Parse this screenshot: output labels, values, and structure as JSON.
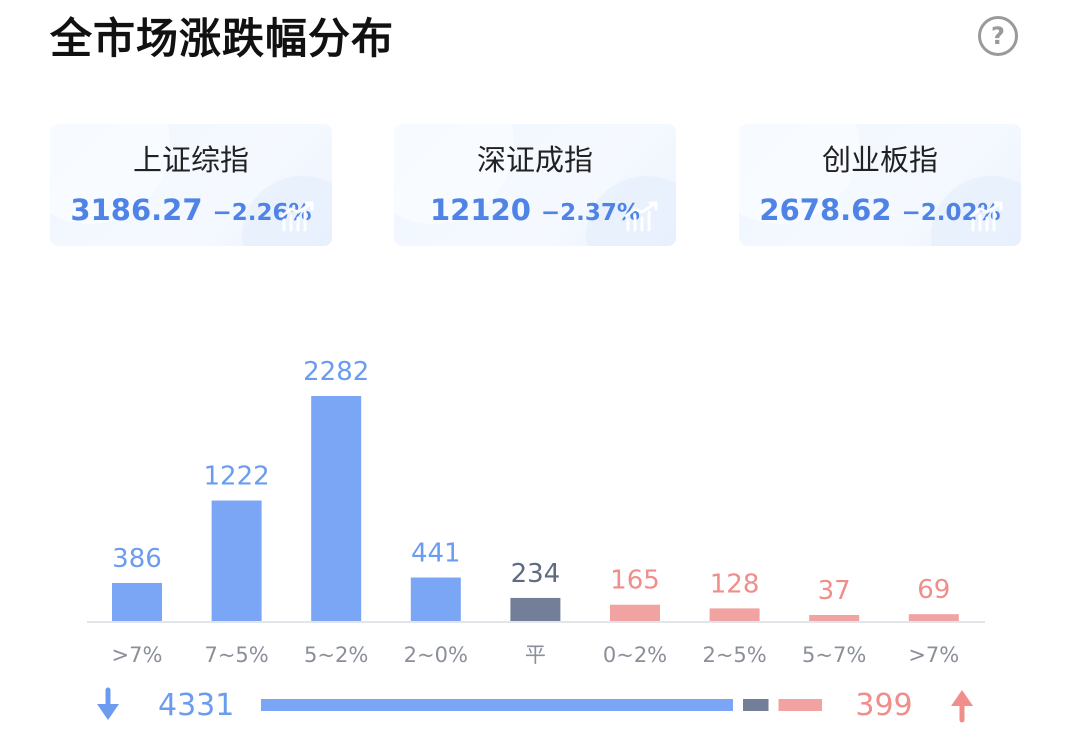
{
  "title": "全市场涨跌幅分布",
  "help_icon": "question-circle-icon",
  "indices": [
    {
      "name": "上证综指",
      "value": "3186.27",
      "change": "−2.26%"
    },
    {
      "name": "深证成指",
      "value": "12120",
      "change": "−2.37%"
    },
    {
      "name": "创业板指",
      "value": "2678.62",
      "change": "−2.02%"
    }
  ],
  "colors": {
    "down": "#7aa6f5",
    "flat": "#737f99",
    "up": "#f0a3a0",
    "down_text": "#6b9cf0",
    "up_text": "#ef8e8a",
    "flat_text": "#5f6b80"
  },
  "chart_data": {
    "type": "bar",
    "categories": [
      ">7%",
      "7~5%",
      "5~2%",
      "2~0%",
      "平",
      "0~2%",
      "2~5%",
      "5~7%",
      ">7%"
    ],
    "values": [
      386,
      1222,
      2282,
      441,
      234,
      165,
      128,
      37,
      69
    ],
    "groups": [
      "down",
      "down",
      "down",
      "down",
      "flat",
      "up",
      "up",
      "up",
      "up"
    ],
    "title": "",
    "xlabel": "",
    "ylabel": "",
    "ylim": [
      0,
      2282
    ]
  },
  "summary": {
    "down_total": "4331",
    "up_total": "399",
    "down_count": 4331,
    "flat_count": 234,
    "up_count": 399
  }
}
